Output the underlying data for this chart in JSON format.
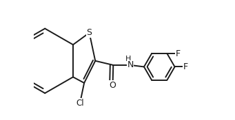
{
  "bg_color": "#ffffff",
  "line_color": "#1a1a1a",
  "font_size": 8.5,
  "line_width": 1.4,
  "atoms": {
    "S_label": "S",
    "Cl_label": "Cl",
    "O_label": "O",
    "NH_label": "H\nN",
    "F3_label": "F",
    "F4_label": "F"
  }
}
